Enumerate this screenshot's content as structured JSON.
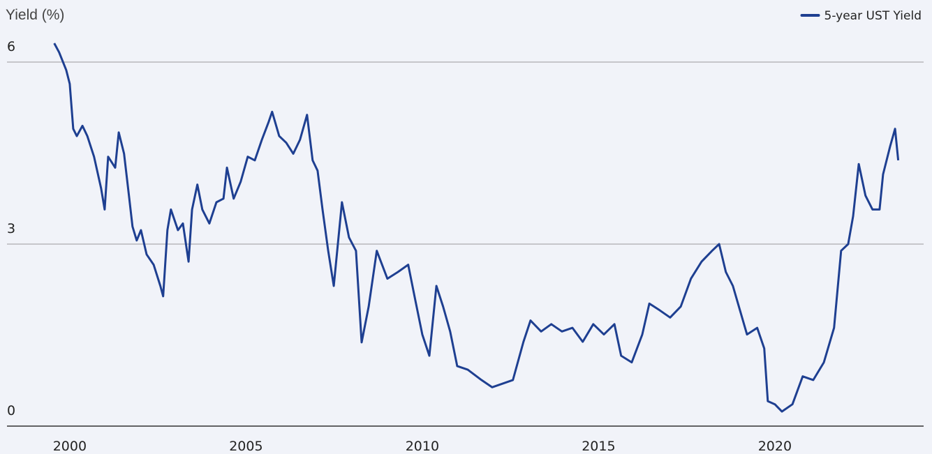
{
  "chart_data": {
    "type": "line",
    "y_label": "Yield (%)",
    "legend": "upper right",
    "grid": true,
    "x": [
      1999.56,
      1999.7,
      1999.9,
      2000.0,
      2000.1,
      2000.2,
      2000.36,
      2000.5,
      2000.69,
      2000.89,
      2000.99,
      2001.09,
      2001.29,
      2001.39,
      2001.54,
      2001.68,
      2001.78,
      2001.9,
      2002.02,
      2002.18,
      2002.38,
      2002.57,
      2002.65,
      2002.77,
      2002.87,
      2003.07,
      2003.21,
      2003.37,
      2003.47,
      2003.62,
      2003.76,
      2003.96,
      2004.16,
      2004.36,
      2004.46,
      2004.65,
      2004.85,
      2005.05,
      2005.25,
      2005.45,
      2005.64,
      2005.74,
      2005.94,
      2006.14,
      2006.34,
      2006.53,
      2006.73,
      2006.89,
      2007.03,
      2007.17,
      2007.33,
      2007.49,
      2007.72,
      2007.92,
      2008.12,
      2008.28,
      2008.48,
      2008.71,
      2009.01,
      2009.31,
      2009.6,
      2009.8,
      2010.0,
      2010.2,
      2010.4,
      2010.59,
      2010.79,
      2010.99,
      2011.29,
      2011.68,
      2011.98,
      2012.28,
      2012.57,
      2012.87,
      2013.07,
      2013.37,
      2013.66,
      2013.96,
      2014.26,
      2014.55,
      2014.85,
      2015.15,
      2015.45,
      2015.64,
      2015.94,
      2016.24,
      2016.44,
      2016.73,
      2017.03,
      2017.33,
      2017.62,
      2017.92,
      2018.22,
      2018.42,
      2018.61,
      2018.81,
      2019.01,
      2019.21,
      2019.5,
      2019.7,
      2019.8,
      2020.0,
      2020.2,
      2020.5,
      2020.79,
      2021.09,
      2021.39,
      2021.68,
      2021.88,
      2022.08,
      2022.22,
      2022.38,
      2022.57,
      2022.77,
      2022.97,
      2023.07,
      2023.27,
      2023.41,
      2023.5
    ],
    "series": [
      {
        "name": "5-year UST Yield",
        "color": "#1e3f91",
        "values": [
          6.31,
          6.16,
          5.87,
          5.64,
          4.9,
          4.78,
          4.95,
          4.78,
          4.44,
          3.92,
          3.57,
          4.44,
          4.26,
          4.84,
          4.49,
          3.8,
          3.29,
          3.06,
          3.23,
          2.83,
          2.66,
          2.31,
          2.14,
          3.23,
          3.57,
          3.23,
          3.34,
          2.71,
          3.57,
          3.98,
          3.57,
          3.34,
          3.69,
          3.75,
          4.26,
          3.75,
          4.03,
          4.44,
          4.38,
          4.72,
          5.01,
          5.18,
          4.78,
          4.67,
          4.49,
          4.72,
          5.13,
          4.38,
          4.21,
          3.57,
          2.89,
          2.31,
          3.69,
          3.11,
          2.89,
          1.38,
          1.97,
          2.89,
          2.43,
          2.54,
          2.66,
          2.08,
          1.51,
          1.16,
          2.31,
          1.97,
          1.56,
          0.99,
          0.93,
          0.76,
          0.64,
          0.7,
          0.76,
          1.39,
          1.74,
          1.56,
          1.68,
          1.56,
          1.62,
          1.39,
          1.68,
          1.51,
          1.68,
          1.16,
          1.05,
          1.51,
          2.02,
          1.91,
          1.79,
          1.97,
          2.43,
          2.71,
          2.89,
          3.0,
          2.54,
          2.31,
          1.91,
          1.51,
          1.62,
          1.28,
          0.41,
          0.36,
          0.24,
          0.36,
          0.82,
          0.76,
          1.05,
          1.62,
          2.89,
          3.0,
          3.46,
          4.32,
          3.8,
          3.57,
          3.57,
          4.15,
          4.61,
          4.9,
          4.38
        ]
      }
    ],
    "xlim": [
      1998.22,
      2024.22
    ],
    "xticks": [
      2000,
      2005,
      2010,
      2015,
      2020
    ],
    "ylim": [
      0,
      6.4
    ],
    "yticks": [
      0,
      3,
      6
    ]
  }
}
